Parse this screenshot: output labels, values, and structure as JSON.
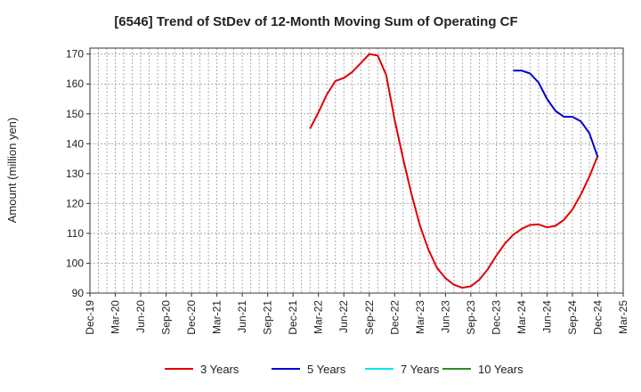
{
  "chart_data": {
    "type": "line",
    "title": "[6546]  Trend of StDev of 12-Month Moving Sum of Operating CF",
    "xlabel": "",
    "ylabel": "Amount (million yen)",
    "ylim": [
      90,
      172
    ],
    "yticks": [
      90,
      100,
      110,
      120,
      130,
      140,
      150,
      160,
      170
    ],
    "xticks": [
      "Dec-19",
      "Mar-20",
      "Jun-20",
      "Sep-20",
      "Dec-20",
      "Mar-21",
      "Jun-21",
      "Sep-21",
      "Dec-21",
      "Mar-22",
      "Jun-22",
      "Sep-22",
      "Dec-22",
      "Mar-23",
      "Jun-23",
      "Sep-23",
      "Dec-23",
      "Mar-24",
      "Jun-24",
      "Sep-24",
      "Dec-24",
      "Mar-25"
    ],
    "grid": true,
    "legend_position": "bottom",
    "series": [
      {
        "name": "3 Years",
        "color": "#e00000",
        "points": [
          [
            "Feb-22",
            145
          ],
          [
            "Mar-22",
            150.5
          ],
          [
            "Apr-22",
            156.5
          ],
          [
            "May-22",
            161
          ],
          [
            "Jun-22",
            162
          ],
          [
            "Jul-22",
            164
          ],
          [
            "Aug-22",
            167
          ],
          [
            "Sep-22",
            170
          ],
          [
            "Oct-22",
            169.5
          ],
          [
            "Nov-22",
            163
          ],
          [
            "Dec-22",
            148
          ],
          [
            "Jan-23",
            135
          ],
          [
            "Feb-23",
            123
          ],
          [
            "Mar-23",
            112.5
          ],
          [
            "Apr-23",
            104.5
          ],
          [
            "May-23",
            98.5
          ],
          [
            "Jun-23",
            95
          ],
          [
            "Jul-23",
            92.8
          ],
          [
            "Aug-23",
            91.8
          ],
          [
            "Sep-23",
            92.3
          ],
          [
            "Oct-23",
            94.5
          ],
          [
            "Nov-23",
            98
          ],
          [
            "Dec-23",
            102.5
          ],
          [
            "Jan-24",
            106.5
          ],
          [
            "Feb-24",
            109.5
          ],
          [
            "Mar-24",
            111.5
          ],
          [
            "Apr-24",
            112.8
          ],
          [
            "May-24",
            113
          ],
          [
            "Jun-24",
            112
          ],
          [
            "Jul-24",
            112.5
          ],
          [
            "Aug-24",
            114.5
          ],
          [
            "Sep-24",
            118
          ],
          [
            "Oct-24",
            123
          ],
          [
            "Nov-24",
            129
          ],
          [
            "Dec-24",
            136
          ]
        ]
      },
      {
        "name": "5 Years",
        "color": "#0000d0",
        "points": [
          [
            "Feb-24",
            164.5
          ],
          [
            "Mar-24",
            164.5
          ],
          [
            "Apr-24",
            163.5
          ],
          [
            "May-24",
            160.5
          ],
          [
            "Jun-24",
            155
          ],
          [
            "Jul-24",
            151
          ],
          [
            "Aug-24",
            149
          ],
          [
            "Sep-24",
            149
          ],
          [
            "Oct-24",
            147.5
          ],
          [
            "Nov-24",
            143.5
          ],
          [
            "Dec-24",
            135.5
          ]
        ]
      },
      {
        "name": "7 Years",
        "color": "#00e5ee",
        "points": []
      },
      {
        "name": "10 Years",
        "color": "#2a8a2a",
        "points": []
      }
    ]
  }
}
